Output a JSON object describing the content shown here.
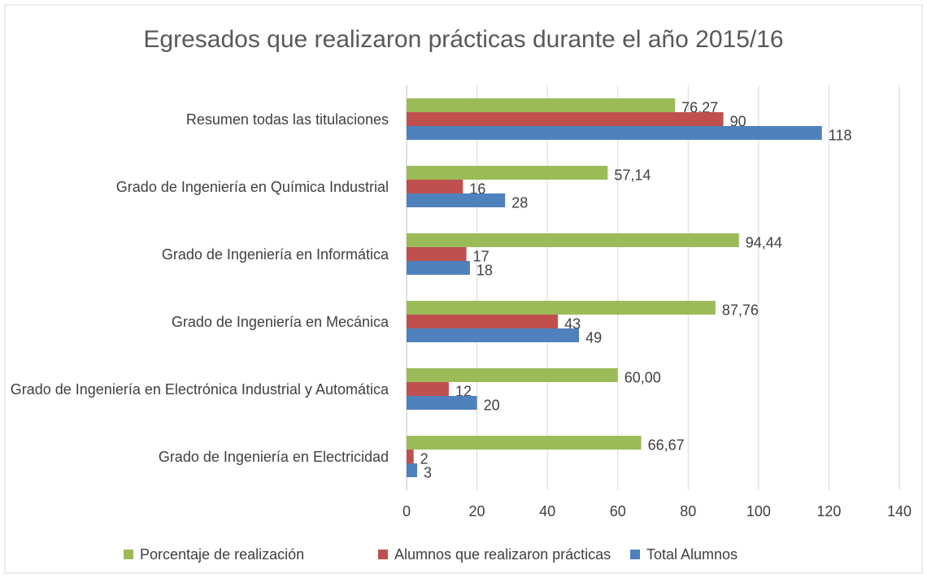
{
  "chart_data": {
    "type": "hbar",
    "title": "Egresados que realizaron prácticas durante el año 2015/16",
    "categories": [
      "Resumen todas las titulaciones",
      "Grado de Ingeniería en Química Industrial",
      "Grado de Ingeniería en Informática",
      "Grado de Ingeniería en Mecánica",
      "Grado de Ingeniería en Electrónica Industrial y Automática",
      "Grado de Ingeniería en Electricidad"
    ],
    "series": [
      {
        "name": "Porcentaje de realización",
        "color": "#9bbb59",
        "values": [
          76.27,
          57.14,
          94.44,
          87.76,
          60.0,
          66.67
        ],
        "value_labels": [
          "76,27",
          "57,14",
          "94,44",
          "87,76",
          "60,00",
          "66,67"
        ]
      },
      {
        "name": "Alumnos que realizaron  prácticas",
        "color": "#c0504d",
        "values": [
          90,
          16,
          17,
          43,
          12,
          2
        ]
      },
      {
        "name": "Total Alumnos",
        "color": "#4f81bd",
        "values": [
          118,
          28,
          18,
          49,
          20,
          3
        ]
      }
    ],
    "xlim": [
      0,
      140
    ],
    "xticks": [
      0,
      20,
      40,
      60,
      80,
      100,
      120,
      140
    ],
    "grid": true,
    "legend": "bottom"
  }
}
